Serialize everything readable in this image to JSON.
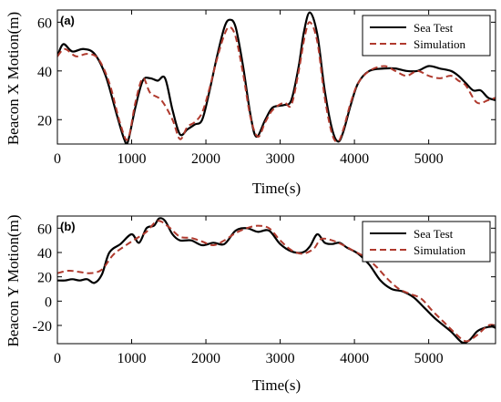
{
  "chart_data": [
    {
      "type": "line",
      "panel_label": "(a)",
      "xlabel": "Time(s)",
      "ylabel": "Beacon X Motion(m)",
      "xlim": [
        0,
        5900
      ],
      "ylim": [
        10,
        65
      ],
      "xticks": [
        0,
        1000,
        2000,
        3000,
        4000,
        5000
      ],
      "yticks": [
        20,
        40,
        60
      ],
      "legend_position": "top-right",
      "series": [
        {
          "name": "Sea Test",
          "color": "#000000",
          "style": "solid",
          "x": [
            0,
            80,
            200,
            350,
            500,
            650,
            800,
            900,
            950,
            1050,
            1150,
            1250,
            1350,
            1450,
            1550,
            1650,
            1750,
            1850,
            1950,
            2050,
            2150,
            2250,
            2320,
            2400,
            2500,
            2600,
            2680,
            2800,
            2900,
            3050,
            3150,
            3250,
            3320,
            3400,
            3500,
            3600,
            3700,
            3780,
            3850,
            3950,
            4050,
            4200,
            4400,
            4550,
            4700,
            4850,
            5000,
            5150,
            5300,
            5400,
            5500,
            5600,
            5700,
            5800,
            5900
          ],
          "y": [
            46,
            51,
            48,
            49,
            47,
            38,
            22,
            12,
            11,
            25,
            36,
            37,
            36,
            37,
            24,
            14,
            16,
            18,
            20,
            32,
            46,
            58,
            61,
            58,
            42,
            22,
            13,
            20,
            25,
            26,
            28,
            42,
            56,
            64,
            55,
            32,
            16,
            11,
            15,
            26,
            35,
            40,
            41,
            41,
            40,
            40,
            42,
            41,
            40,
            38,
            35,
            32,
            32,
            29,
            28
          ]
        },
        {
          "name": "Simulation",
          "color": "#b03a2e",
          "style": "dashed",
          "x": [
            0,
            100,
            250,
            400,
            550,
            700,
            850,
            950,
            1050,
            1150,
            1250,
            1400,
            1550,
            1650,
            1750,
            1850,
            1950,
            2050,
            2150,
            2250,
            2320,
            2400,
            2500,
            2600,
            2700,
            2800,
            2900,
            3050,
            3150,
            3250,
            3330,
            3400,
            3500,
            3600,
            3700,
            3780,
            3850,
            3950,
            4050,
            4200,
            4400,
            4550,
            4700,
            4850,
            5000,
            5150,
            5300,
            5400,
            5500,
            5650,
            5800,
            5900
          ],
          "y": [
            46,
            49,
            46,
            47,
            45,
            35,
            18,
            12,
            27,
            37,
            31,
            28,
            20,
            12,
            17,
            19,
            23,
            33,
            45,
            55,
            58,
            54,
            39,
            21,
            13,
            19,
            24,
            27,
            26,
            40,
            54,
            60,
            52,
            29,
            14,
            11,
            16,
            27,
            35,
            40,
            42,
            40,
            38,
            40,
            38,
            37,
            38,
            36,
            34,
            27,
            28,
            29
          ]
        }
      ]
    },
    {
      "type": "line",
      "panel_label": "(b)",
      "xlabel": "Time(s)",
      "ylabel": "Beacon Y Motion(m)",
      "xlim": [
        0,
        5900
      ],
      "ylim": [
        -35,
        70
      ],
      "xticks": [
        0,
        1000,
        2000,
        3000,
        4000,
        5000
      ],
      "yticks": [
        -20,
        0,
        20,
        40,
        60
      ],
      "legend_position": "top-right",
      "series": [
        {
          "name": "Sea Test",
          "color": "#000000",
          "style": "solid",
          "x": [
            0,
            100,
            200,
            300,
            400,
            500,
            600,
            700,
            850,
            1000,
            1100,
            1200,
            1300,
            1370,
            1450,
            1550,
            1650,
            1800,
            1950,
            2100,
            2250,
            2400,
            2550,
            2700,
            2850,
            3000,
            3150,
            3300,
            3400,
            3500,
            3600,
            3700,
            3800,
            3900,
            4050,
            4200,
            4350,
            4500,
            4650,
            4800,
            4950,
            5100,
            5300,
            5450,
            5550,
            5650,
            5750,
            5850,
            5900
          ],
          "y": [
            17,
            17,
            18,
            17,
            18,
            15,
            22,
            40,
            47,
            55,
            48,
            60,
            62,
            68,
            66,
            55,
            50,
            50,
            46,
            48,
            47,
            58,
            60,
            57,
            58,
            47,
            41,
            40,
            45,
            55,
            48,
            47,
            48,
            44,
            39,
            30,
            17,
            10,
            8,
            3,
            -6,
            -15,
            -25,
            -34,
            -32,
            -25,
            -22,
            -21,
            -22
          ]
        },
        {
          "name": "Simulation",
          "color": "#b03a2e",
          "style": "dashed",
          "x": [
            0,
            150,
            300,
            450,
            600,
            750,
            900,
            1050,
            1200,
            1350,
            1500,
            1650,
            1800,
            1950,
            2100,
            2250,
            2400,
            2550,
            2700,
            2850,
            3000,
            3150,
            3300,
            3450,
            3550,
            3700,
            3850,
            4000,
            4150,
            4300,
            4450,
            4600,
            4750,
            4900,
            5050,
            5200,
            5350,
            5500,
            5650,
            5800,
            5900
          ],
          "y": [
            23,
            25,
            24,
            23,
            26,
            38,
            45,
            51,
            57,
            66,
            61,
            53,
            52,
            49,
            46,
            50,
            56,
            60,
            62,
            60,
            50,
            42,
            39,
            43,
            51,
            50,
            46,
            41,
            36,
            28,
            18,
            10,
            6,
            2,
            -8,
            -17,
            -26,
            -33,
            -28,
            -20,
            -20
          ]
        }
      ]
    }
  ]
}
